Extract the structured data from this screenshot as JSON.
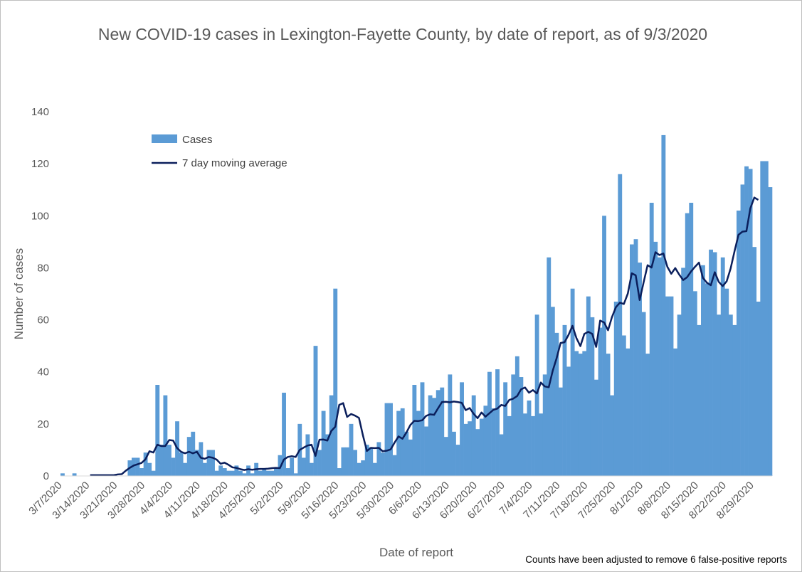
{
  "chart_data": {
    "type": "bar",
    "title": "New COVID-19 cases in Lexington-Fayette County, by date of report, as of 9/3/2020",
    "xlabel": "Date of report",
    "ylabel": "Number of cases",
    "ylim": [
      0,
      140
    ],
    "yticks": [
      0,
      20,
      40,
      60,
      80,
      100,
      120,
      140
    ],
    "grid": false,
    "legend_position": "top-left",
    "start_date": "3/7/2020",
    "x_tick_labels": [
      "3/7/2020",
      "3/14/2020",
      "3/21/2020",
      "3/28/2020",
      "4/4/2020",
      "4/11/2020",
      "4/18/2020",
      "4/25/2020",
      "5/2/2020",
      "5/9/2020",
      "5/16/2020",
      "5/23/2020",
      "5/30/2020",
      "6/6/2020",
      "6/13/2020",
      "6/20/2020",
      "6/27/2020",
      "7/4/2020",
      "7/11/2020",
      "7/18/2020",
      "7/25/2020",
      "8/1/2020",
      "8/8/2020",
      "8/15/2020",
      "8/22/2020",
      "8/29/2020"
    ],
    "series": [
      {
        "name": "Cases",
        "type": "bar",
        "color": "#5b9bd5",
        "values": [
          1,
          0,
          0,
          1,
          0,
          0,
          0,
          0,
          0,
          0,
          0,
          0,
          0,
          0,
          0,
          0,
          0,
          6,
          7,
          7,
          3,
          9,
          5,
          2,
          35,
          12,
          31,
          12,
          7,
          21,
          9,
          5,
          15,
          17,
          10,
          13,
          5,
          10,
          10,
          2,
          4,
          3,
          2,
          2,
          4,
          2,
          1,
          4,
          1,
          5,
          2,
          3,
          2,
          2,
          3,
          8,
          32,
          3,
          7,
          1,
          20,
          7,
          16,
          5,
          50,
          10,
          25,
          16,
          31,
          72,
          3,
          11,
          11,
          20,
          10,
          5,
          6,
          12,
          11,
          5,
          13,
          9,
          28,
          28,
          8,
          25,
          26,
          17,
          14,
          35,
          25,
          36,
          19,
          31,
          30,
          33,
          34,
          15,
          39,
          17,
          12,
          36,
          20,
          21,
          31,
          18,
          22,
          27,
          40,
          26,
          41,
          16,
          36,
          23,
          39,
          46,
          38,
          24,
          29,
          23,
          62,
          24,
          39,
          84,
          65,
          55,
          34,
          58,
          42,
          72,
          48,
          47,
          48,
          69,
          61,
          37,
          57,
          100,
          47,
          31,
          67,
          116,
          54,
          49,
          89,
          91,
          82,
          63,
          47,
          105,
          90,
          84,
          131,
          69,
          69,
          49,
          62,
          80,
          101,
          105,
          71,
          58,
          81,
          74,
          87,
          86,
          62,
          84,
          72,
          62,
          58,
          102,
          112,
          119,
          118,
          88,
          67,
          121,
          121,
          111
        ],
        "moving_average": [
          null,
          null,
          null,
          null,
          null,
          null,
          null,
          0.3,
          0.3,
          0.3,
          0.3,
          0.3,
          0.3,
          0.3,
          0.6,
          0.7,
          2,
          3.1,
          4,
          4.5,
          5,
          6.4,
          9.5,
          9,
          12,
          11.5,
          11.5,
          13.8,
          13.6,
          10.7,
          9.3,
          8.7,
          9.3,
          8.7,
          9.3,
          7,
          6.6,
          7.3,
          7,
          6.3,
          4.7,
          5.1,
          4.3,
          3.3,
          3.1,
          2.6,
          2.3,
          2.6,
          2.4,
          2.6,
          2.7,
          2.7,
          2.8,
          3,
          3.1,
          3,
          6.3,
          7.3,
          7.6,
          7.3,
          10,
          10.9,
          11.7,
          12,
          7.7,
          13.9,
          14,
          13.6,
          17.3,
          18.9,
          27.3,
          28,
          22.7,
          23.8,
          23.2,
          22.3,
          15.6,
          9.6,
          10.8,
          10.7,
          10.8,
          9.5,
          9.7,
          10.2,
          12.8,
          15.2,
          14.3,
          16.7,
          19.6,
          21.2,
          21.1,
          21.4,
          23.1,
          23.7,
          23.5,
          26,
          28.4,
          28.5,
          28.3,
          28.6,
          28.4,
          28.1,
          25.3,
          26.1,
          23.9,
          22.2,
          24.4,
          22.8,
          24.1,
          25.4,
          25.9,
          27.3,
          26.9,
          29.2,
          29.7,
          30.7,
          33.3,
          34,
          32,
          33,
          31.7,
          35.9,
          34.4,
          34.1,
          40.4,
          45.3,
          51.1,
          51.4,
          54.2,
          57.7,
          53,
          49.9,
          54.6,
          55.4,
          54.6,
          49.6,
          59.7,
          59,
          56,
          61.1,
          64.9,
          66.6,
          66.1,
          70.1,
          77.9,
          77.1,
          67.6,
          74.4,
          81,
          80.1,
          86,
          84.9,
          85.5,
          80.4,
          77.7,
          79.9,
          77.4,
          75.3,
          76.4,
          78.6,
          80.4,
          82,
          76.1,
          74.3,
          73.3,
          78.3,
          74.6,
          73,
          74.8,
          79.7,
          86.4,
          92.7,
          93.9,
          94.1,
          102.9,
          107,
          106.1
        ]
      }
    ],
    "legend": [
      {
        "label": "Cases",
        "swatch": "bar",
        "color": "#5b9bd5"
      },
      {
        "label": "7 day moving average",
        "swatch": "line",
        "color": "#0b1f5c"
      }
    ],
    "footnote": "Counts have been adjusted to remove 6 false-positive reports"
  }
}
